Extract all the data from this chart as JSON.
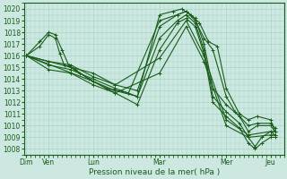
{
  "title": "Pression niveau de la mer( hPa )",
  "ylabel_ticks": [
    1008,
    1009,
    1010,
    1011,
    1012,
    1013,
    1014,
    1015,
    1016,
    1017,
    1018,
    1019,
    1020
  ],
  "xlabels": [
    "Dim",
    "Ven",
    "Lun",
    "Mar",
    "Mer",
    "Jeu"
  ],
  "xpositions": [
    0,
    0.5,
    1.5,
    3.0,
    4.5,
    5.5
  ],
  "ylim": [
    1007.5,
    1020.5
  ],
  "xlim": [
    -0.05,
    5.8
  ],
  "bg_color": "#cce8e0",
  "grid_color": "#a8d4c8",
  "line_color": "#1a5c1a",
  "marker_color": "#1a5c1a",
  "series": [
    [
      0.0,
      1016.0,
      0.3,
      1016.8,
      0.5,
      1017.8,
      0.65,
      1017.5,
      0.75,
      1016.2,
      0.85,
      1015.2,
      1.0,
      1015.0,
      1.2,
      1014.5,
      1.5,
      1013.8,
      2.0,
      1013.0,
      2.5,
      1012.5,
      3.0,
      1019.5,
      3.3,
      1019.8,
      3.5,
      1020.0,
      3.7,
      1019.5,
      3.9,
      1018.8,
      4.1,
      1017.2,
      4.3,
      1016.8,
      4.5,
      1013.2,
      4.8,
      1011.0,
      5.0,
      1010.5,
      5.2,
      1010.8,
      5.5,
      1010.5,
      5.6,
      1009.5
    ],
    [
      0.0,
      1016.0,
      0.3,
      1017.2,
      0.5,
      1018.0,
      0.65,
      1017.8,
      0.8,
      1016.5,
      0.95,
      1015.2,
      1.1,
      1014.8,
      1.4,
      1014.0,
      1.8,
      1013.2,
      2.3,
      1012.8,
      3.0,
      1019.0,
      3.4,
      1019.5,
      3.6,
      1019.8,
      3.8,
      1019.0,
      4.0,
      1017.5,
      4.2,
      1016.5,
      4.5,
      1012.5,
      4.7,
      1011.2,
      5.0,
      1010.0,
      5.2,
      1010.2,
      5.5,
      1010.2,
      5.6,
      1009.8
    ],
    [
      0.0,
      1016.0,
      0.5,
      1015.5,
      1.0,
      1015.2,
      1.5,
      1014.2,
      2.0,
      1013.5,
      2.5,
      1013.0,
      3.0,
      1018.5,
      3.4,
      1019.5,
      3.6,
      1019.8,
      3.8,
      1019.2,
      4.0,
      1017.0,
      4.2,
      1013.2,
      4.5,
      1011.8,
      4.8,
      1010.8,
      5.0,
      1009.5,
      5.2,
      1010.0,
      5.5,
      1010.0,
      5.6,
      1009.5
    ],
    [
      0.0,
      1016.0,
      0.5,
      1015.2,
      1.0,
      1014.8,
      1.5,
      1014.0,
      2.0,
      1013.2,
      2.5,
      1012.5,
      3.0,
      1017.5,
      3.4,
      1019.0,
      3.6,
      1019.5,
      3.8,
      1018.8,
      4.0,
      1016.5,
      4.2,
      1012.5,
      4.5,
      1011.2,
      4.8,
      1010.2,
      5.0,
      1009.0,
      5.15,
      1008.2,
      5.3,
      1009.0,
      5.5,
      1009.5,
      5.6,
      1009.2
    ],
    [
      0.0,
      1016.0,
      0.5,
      1014.8,
      1.0,
      1014.5,
      1.5,
      1013.5,
      2.0,
      1012.8,
      2.5,
      1011.8,
      3.0,
      1016.5,
      3.4,
      1018.8,
      3.6,
      1019.2,
      3.8,
      1018.5,
      4.0,
      1016.2,
      4.2,
      1012.0,
      4.5,
      1010.8,
      4.8,
      1009.8,
      5.0,
      1008.5,
      5.15,
      1008.0,
      5.3,
      1008.5,
      5.5,
      1009.0,
      5.6,
      1009.0
    ],
    [
      0.0,
      1016.0,
      1.5,
      1014.5,
      2.0,
      1013.5,
      3.0,
      1015.8,
      3.6,
      1019.0,
      4.0,
      1016.0,
      4.5,
      1010.5,
      5.0,
      1009.2,
      5.5,
      1009.5,
      5.6,
      1009.5
    ],
    [
      0.0,
      1016.0,
      1.5,
      1013.8,
      2.0,
      1012.8,
      3.0,
      1014.5,
      3.6,
      1018.5,
      4.0,
      1015.5,
      4.5,
      1010.0,
      5.0,
      1009.0,
      5.5,
      1009.2,
      5.6,
      1009.2
    ]
  ],
  "figsize": [
    3.2,
    2.0
  ],
  "dpi": 100
}
